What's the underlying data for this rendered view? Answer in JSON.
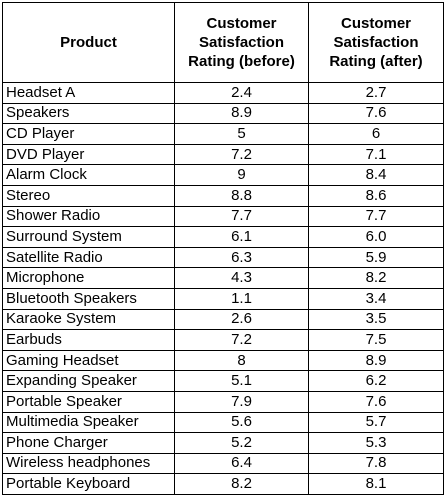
{
  "table": {
    "headers": {
      "product": "Product",
      "before": "Customer Satisfaction Rating (before)",
      "after": "Customer Satisfaction Rating (after)"
    },
    "rows": [
      {
        "product": "Headset A",
        "before": "2.4",
        "after": "2.7"
      },
      {
        "product": "Speakers",
        "before": "8.9",
        "after": "7.6"
      },
      {
        "product": "CD Player",
        "before": "5",
        "after": "6"
      },
      {
        "product": "DVD Player",
        "before": "7.2",
        "after": "7.1"
      },
      {
        "product": "Alarm Clock",
        "before": "9",
        "after": "8.4"
      },
      {
        "product": "Stereo",
        "before": "8.8",
        "after": "8.6"
      },
      {
        "product": "Shower Radio",
        "before": "7.7",
        "after": "7.7"
      },
      {
        "product": "Surround System",
        "before": "6.1",
        "after": "6.0"
      },
      {
        "product": "Satellite Radio",
        "before": "6.3",
        "after": "5.9"
      },
      {
        "product": "Microphone",
        "before": "4.3",
        "after": "8.2"
      },
      {
        "product": "Bluetooth Speakers",
        "before": "1.1",
        "after": "3.4"
      },
      {
        "product": "Karaoke System",
        "before": "2.6",
        "after": "3.5"
      },
      {
        "product": "Earbuds",
        "before": "7.2",
        "after": "7.5"
      },
      {
        "product": "Gaming Headset",
        "before": "8",
        "after": "8.9"
      },
      {
        "product": "Expanding Speaker",
        "before": "5.1",
        "after": "6.2"
      },
      {
        "product": "Portable Speaker",
        "before": "7.9",
        "after": "7.6"
      },
      {
        "product": "Multimedia Speaker",
        "before": "5.6",
        "after": "5.7"
      },
      {
        "product": "Phone Charger",
        "before": "5.2",
        "after": "5.3"
      },
      {
        "product": "Wireless headphones",
        "before": "6.4",
        "after": "7.8"
      },
      {
        "product": "Portable Keyboard",
        "before": "8.2",
        "after": "8.1"
      }
    ]
  }
}
